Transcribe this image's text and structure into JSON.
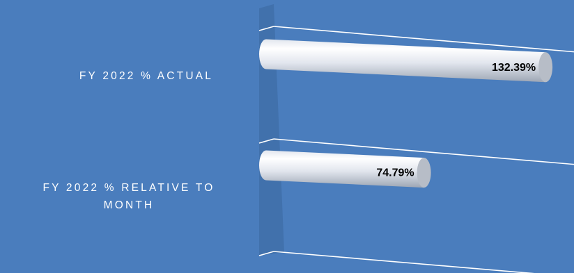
{
  "chart_data": {
    "type": "bar",
    "orientation": "horizontal",
    "style": "3d-cylinder",
    "title": "",
    "xlabel": "",
    "ylabel": "",
    "categories": [
      "FY 2022 % ACTUAL",
      "FY 2022 % RELATIVE TO MONTH"
    ],
    "category_lines": [
      [
        "FY 2022 % ACTUAL"
      ],
      [
        "FY 2022 % RELATIVE TO",
        "MONTH"
      ]
    ],
    "values": [
      132.39,
      74.79
    ],
    "data_labels": [
      "132.39%",
      "74.79%"
    ],
    "value_unit": "%",
    "grid": true,
    "legend": "none",
    "colors": {
      "background": "#4a7dbd",
      "wall": "#3f6fa9",
      "gridline": "#ffffff",
      "bar_light": "#ffffff",
      "bar_mid": "#e2e6ee",
      "bar_dark": "#9da6b4",
      "cap": "#b7bdc7",
      "label_text": "#ffffff",
      "data_label_text": "#000000"
    }
  }
}
